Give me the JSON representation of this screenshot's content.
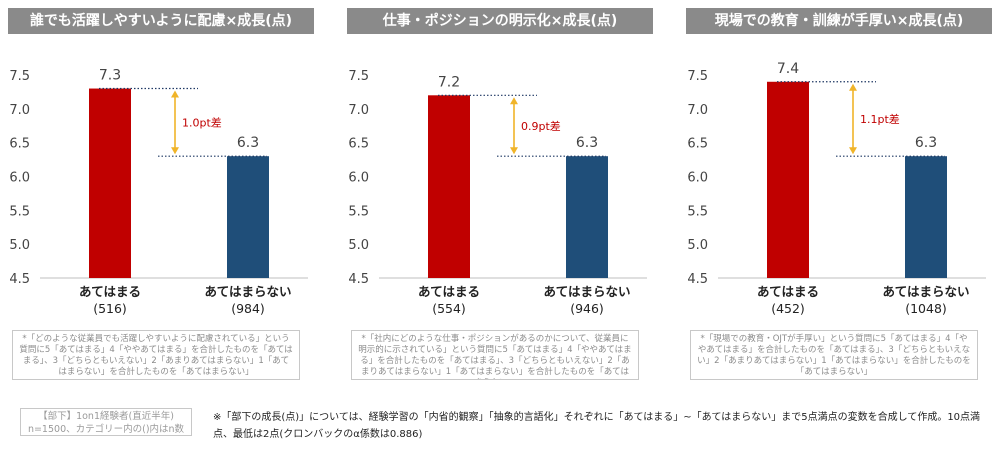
{
  "chart_data": [
    {
      "type": "bar",
      "title": "誰でも活躍しやすいように配慮×成長(点)",
      "categories": [
        "あてはまる",
        "あてはまらない"
      ],
      "counts": [
        "(516)",
        "(984)"
      ],
      "values": [
        7.3,
        6.3
      ],
      "value_labels": [
        "7.3",
        "6.3"
      ],
      "diff_label": "1.0pt差",
      "ylim": [
        4.5,
        7.5
      ],
      "yticks": [
        "7.5",
        "7.0",
        "6.5",
        "6.0",
        "5.5",
        "5.0",
        "4.5"
      ],
      "bar_colors": [
        "#c00000",
        "#1f4e79"
      ],
      "note": "*「どのような従業員でも活躍しやすいように配慮されている」という質問に5「あてはまる」4「ややあてはまる」を合計したものを「あてはまる」、3「どちらともいえない」2「あまりあてはまらない」1「あてはまらない」を合計したものを「あてはまらない」"
    },
    {
      "type": "bar",
      "title": "仕事・ポジションの明示化×成長(点)",
      "categories": [
        "あてはまる",
        "あてはまらない"
      ],
      "counts": [
        "(554)",
        "(946)"
      ],
      "values": [
        7.2,
        6.3
      ],
      "value_labels": [
        "7.2",
        "6.3"
      ],
      "diff_label": "0.9pt差",
      "ylim": [
        4.5,
        7.5
      ],
      "yticks": [
        "7.5",
        "7.0",
        "6.5",
        "6.0",
        "5.5",
        "5.0",
        "4.5"
      ],
      "bar_colors": [
        "#c00000",
        "#1f4e79"
      ],
      "note": "*「社内にどのような仕事・ポジションがあるのかについて、従業員に明示的に示されている」という質問に5「あてはまる」4「ややあてはまる」を合計したものを「あてはまる」、3「どちらともいえない」2「あまりあてはまらない」1「あてはまらない」を合計したものを「あてはまらない」"
    },
    {
      "type": "bar",
      "title": "現場での教育・訓練が手厚い×成長(点)",
      "categories": [
        "あてはまる",
        "あてはまらない"
      ],
      "counts": [
        "(452)",
        "(1048)"
      ],
      "values": [
        7.4,
        6.3
      ],
      "value_labels": [
        "7.4",
        "6.3"
      ],
      "diff_label": "1.1pt差",
      "ylim": [
        4.5,
        7.5
      ],
      "yticks": [
        "7.5",
        "7.0",
        "6.5",
        "6.0",
        "5.5",
        "5.0",
        "4.5"
      ],
      "bar_colors": [
        "#c00000",
        "#1f4e79"
      ],
      "note": "*「現場での教育・OJTが手厚い」という質問に5「あてはまる」4「ややあてはまる」を合計したものを「あてはまる」、3「どちらともいえない」2「あまりあてはまらない」1「あてはまらない」を合計したものを「あてはまらない」"
    }
  ],
  "sample_note": {
    "line1": "【部下】1on1経験者(直近半年)",
    "line2": "n=1500、カテゴリー内の()内はn数"
  },
  "footnote": "※「部下の成長(点)」については、経験学習の「内省的観察」「抽象的言語化」それぞれに「あてはまる」~「あてはまらない」まで5点満点の変数を合成して作成。10点満点、最低は2点(クロンバックのα係数は0.886)",
  "colors": {
    "title_bg": "#8a8a8a",
    "guide_line": "#1f3864",
    "arrow": "#f0b429",
    "diff_text": "#c00000"
  }
}
